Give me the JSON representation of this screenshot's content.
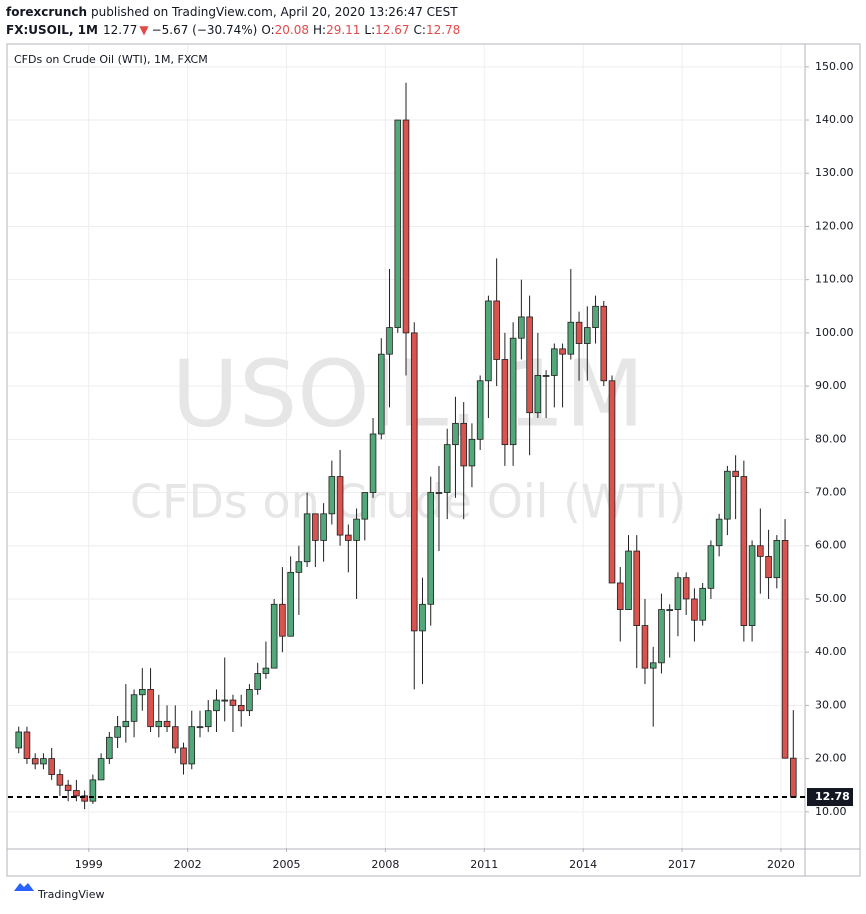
{
  "header": {
    "publisher": "forexcrunch",
    "published": "published on TradingView.com, April 20, 2020 13:26:47 CEST",
    "symbol": "FX:USOIL, 1M",
    "price": 12.77,
    "change": "−5.67 (−30.74%)",
    "ohlc": [
      {
        "label": "O:",
        "value": 20.08
      },
      {
        "label": "H:",
        "value": 29.11
      },
      {
        "label": "L:",
        "value": 12.67
      },
      {
        "label": "C:",
        "value": 12.78
      }
    ]
  },
  "footer": {
    "logo": "TradingView"
  },
  "chart_data": {
    "type": "candlestick",
    "title": "CFDs on Crude Oil (WTI), 1M, FXCM",
    "watermark": [
      "USOIL, 1M",
      "CFDs on Crude Oil (WTI)"
    ],
    "up_color": "#53a87a",
    "down_color": "#d9534f",
    "border_color": "#1f1f1f",
    "x": [
      1996.875,
      1997.125,
      1997.375,
      1997.625,
      1997.875,
      1998.125,
      1998.375,
      1998.625,
      1998.875,
      1999.125,
      1999.375,
      1999.625,
      1999.875,
      2000.125,
      2000.375,
      2000.625,
      2000.875,
      2001.125,
      2001.375,
      2001.625,
      2001.875,
      2002.125,
      2002.375,
      2002.625,
      2002.875,
      2003.125,
      2003.375,
      2003.625,
      2003.875,
      2004.125,
      2004.375,
      2004.625,
      2004.875,
      2005.125,
      2005.375,
      2005.625,
      2005.875,
      2006.125,
      2006.375,
      2006.625,
      2006.875,
      2007.125,
      2007.375,
      2007.625,
      2007.875,
      2008.125,
      2008.375,
      2008.625,
      2008.875,
      2009.125,
      2009.375,
      2009.625,
      2009.875,
      2010.125,
      2010.375,
      2010.625,
      2010.875,
      2011.125,
      2011.375,
      2011.625,
      2011.875,
      2012.125,
      2012.375,
      2012.625,
      2012.875,
      2013.125,
      2013.375,
      2013.625,
      2013.875,
      2014.125,
      2014.375,
      2014.625,
      2014.875,
      2015.125,
      2015.375,
      2015.625,
      2015.875,
      2016.125,
      2016.375,
      2016.625,
      2016.875,
      2017.125,
      2017.375,
      2017.625,
      2017.875,
      2018.125,
      2018.375,
      2018.625,
      2018.875,
      2019.125,
      2019.375,
      2019.625,
      2019.875,
      2020.125,
      2020.375
    ],
    "open": [
      22,
      25,
      20,
      19,
      20,
      17,
      15,
      14,
      13,
      12,
      16,
      20,
      24,
      26,
      27,
      32,
      33,
      26,
      27,
      26,
      22,
      19,
      26,
      26,
      29,
      31,
      31,
      30,
      29,
      33,
      36,
      37,
      49,
      43,
      55,
      57,
      66,
      61,
      66,
      73,
      62,
      61,
      65,
      70,
      81,
      96,
      101,
      140,
      100,
      44,
      49,
      70,
      70,
      79,
      83,
      75,
      80,
      91,
      106,
      95,
      79,
      99,
      103,
      85,
      92,
      92,
      97,
      96,
      102,
      98,
      101,
      105,
      91,
      53,
      48,
      59,
      45,
      37,
      38,
      48,
      48,
      54,
      50,
      46,
      52,
      60,
      65,
      74,
      73,
      45,
      60,
      58,
      54,
      61,
      20.08
    ],
    "high": [
      26,
      26,
      21,
      21,
      22,
      18,
      16,
      16,
      14,
      17,
      21,
      25,
      28,
      34,
      33,
      37,
      37,
      32,
      30,
      30,
      23,
      29,
      29,
      31,
      33,
      39,
      32,
      32,
      34,
      38,
      42,
      50,
      56,
      58,
      60,
      70,
      66,
      68,
      76,
      78,
      64,
      67,
      70,
      84,
      99,
      112,
      140,
      147,
      102,
      54,
      73,
      75,
      82,
      88,
      87,
      83,
      92,
      107,
      114,
      100,
      102,
      110,
      107,
      100,
      93,
      98,
      98,
      112,
      104,
      105,
      107,
      106,
      92,
      56,
      62,
      62,
      50,
      41,
      51,
      49,
      55,
      55,
      52,
      53,
      61,
      66,
      75,
      77,
      76,
      61,
      67,
      63,
      62,
      65,
      29.11
    ],
    "low": [
      21,
      19,
      18,
      18,
      16,
      13,
      12,
      12,
      10.5,
      11.5,
      16,
      19,
      22,
      23,
      24,
      29,
      25,
      24,
      25,
      21,
      17,
      18,
      24,
      25,
      25,
      27,
      25,
      26,
      28,
      32,
      35,
      37,
      40,
      43,
      47,
      56,
      56,
      57,
      64,
      60,
      55,
      50,
      61,
      69,
      80,
      86,
      100,
      92,
      33,
      34,
      45,
      59,
      65,
      69,
      65,
      71,
      78,
      84,
      90,
      75,
      75,
      95,
      77,
      84,
      84,
      86,
      86,
      95,
      91,
      91,
      98,
      90,
      53,
      42,
      48,
      37,
      34,
      26,
      36,
      39,
      43,
      47,
      42,
      45,
      50,
      58,
      62,
      65,
      42,
      42,
      51,
      50,
      52,
      20,
      12.67
    ],
    "close": [
      25,
      20,
      19,
      20,
      17,
      15,
      14,
      13,
      12,
      16,
      20,
      24,
      26,
      27,
      32,
      33,
      26,
      27,
      26,
      22,
      19,
      26,
      26,
      29,
      31,
      31,
      30,
      29,
      33,
      36,
      37,
      49,
      43,
      55,
      57,
      66,
      61,
      66,
      73,
      62,
      61,
      65,
      70,
      81,
      96,
      101,
      140,
      100,
      44,
      49,
      70,
      70,
      79,
      83,
      75,
      80,
      91,
      106,
      95,
      79,
      99,
      103,
      85,
      92,
      92,
      97,
      96,
      102,
      98,
      101,
      105,
      91,
      53,
      48,
      59,
      45,
      37,
      38,
      48,
      48,
      54,
      50,
      46,
      52,
      60,
      65,
      74,
      73,
      45,
      60,
      58,
      54,
      61,
      20.08,
      12.78
    ],
    "last_price": 12.78,
    "xlim": [
      1996.55,
      2020.73
    ],
    "xticks": [
      1999,
      2002,
      2005,
      2008,
      2011,
      2014,
      2017,
      2020
    ],
    "ylim": [
      3.2,
      154.1
    ],
    "yticks": [
      {
        "value": 10,
        "label": "10.00"
      },
      {
        "value": 20,
        "label": "20.00"
      },
      {
        "value": 30,
        "label": "30.00"
      },
      {
        "value": 40,
        "label": "40.00"
      },
      {
        "value": 50,
        "label": "50.00"
      },
      {
        "value": 60,
        "label": "60.00"
      },
      {
        "value": 70,
        "label": "70.00"
      },
      {
        "value": 80,
        "label": "80.00"
      },
      {
        "value": 90,
        "label": "90.00"
      },
      {
        "value": 100,
        "label": "100.00"
      },
      {
        "value": 110,
        "label": "110.00"
      },
      {
        "value": 120,
        "label": "120.00"
      },
      {
        "value": 130,
        "label": "130.00"
      },
      {
        "value": 140,
        "label": "140.00"
      },
      {
        "value": 150,
        "label": "150.00"
      }
    ],
    "grid": true
  }
}
